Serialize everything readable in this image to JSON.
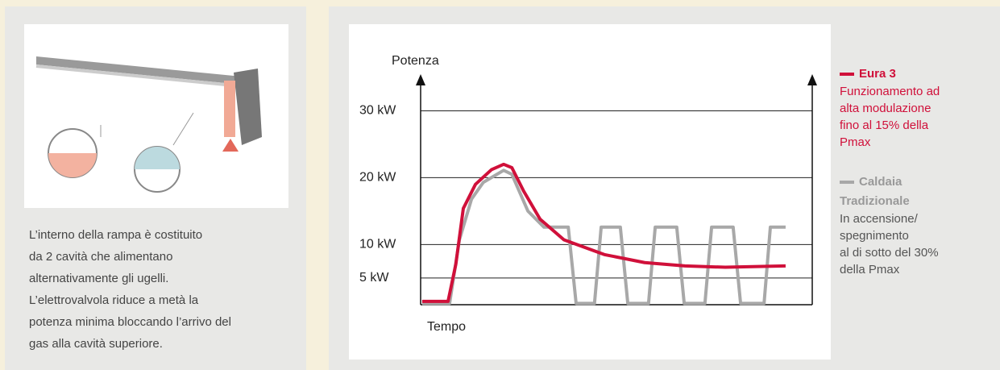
{
  "caption": [
    "L’interno della rampa è costituito",
    "da 2 cavità che alimentano",
    "alternativamente gli ugelli.",
    "L’elettrovalvola riduce a metà la",
    "potenza minima bloccando l’arrivo del",
    "gas alla cavità superiore."
  ],
  "chart_data": {
    "type": "line",
    "y_label": "Potenza",
    "x_label": "Tempo",
    "xlim": [
      0,
      100
    ],
    "ylim": [
      1,
      35
    ],
    "yticks": [
      {
        "value": 5,
        "label": "5 kW"
      },
      {
        "value": 10,
        "label": "10 kW"
      },
      {
        "value": 20,
        "label": "20 kW"
      },
      {
        "value": 30,
        "label": "30 kW"
      }
    ],
    "grid": true,
    "series": [
      {
        "name": "Eura 3",
        "color": "#d0103a",
        "description": [
          "Funzionamento ad",
          "alta modulazione",
          "fino al 15% della",
          "Pmax"
        ],
        "x": [
          0.4,
          7,
          9,
          10.9,
          14,
          18.1,
          21.2,
          23.3,
          26.3,
          30.5,
          36.6,
          46.9,
          57.2,
          67.5,
          77.8,
          93.2
        ],
        "values": [
          1.5,
          1.5,
          7.1,
          15.4,
          19,
          21.2,
          22,
          21.5,
          18,
          13.8,
          10.7,
          8.5,
          7.3,
          6.8,
          6.6,
          6.8
        ]
      },
      {
        "name": "Caldaia Tradizionale",
        "color": "#a8a8a8",
        "description": [
          "In accensione/",
          "spegnimento",
          "al di sotto del 30%",
          "della Pmax"
        ],
        "x": [
          0.4,
          7.4,
          9.9,
          13,
          16,
          21.2,
          23.3,
          27.4,
          31.5,
          37.7,
          39.7,
          44.4,
          46.1,
          51,
          52.9,
          58.2,
          59.9,
          65.4,
          67.3,
          72.6,
          74.3,
          79.8,
          81.7,
          87.7,
          89.3,
          93.2
        ],
        "values": [
          1.2,
          1.2,
          10.7,
          16.8,
          19.3,
          21.1,
          20.5,
          15,
          12.6,
          12.6,
          1.2,
          1.2,
          12.6,
          12.6,
          1.2,
          1.2,
          12.6,
          12.6,
          1.2,
          1.2,
          12.6,
          12.6,
          1.2,
          1.2,
          12.6,
          12.6
        ]
      }
    ]
  }
}
